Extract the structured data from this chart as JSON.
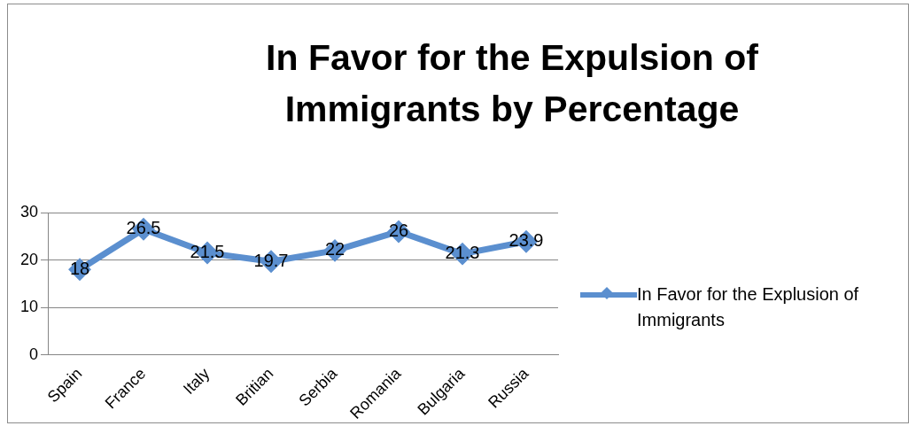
{
  "chart_data": {
    "type": "line",
    "title": "In Favor for the Expulsion of Immigrants by Percentage",
    "categories": [
      "Spain",
      "France",
      "Italy",
      "Britian",
      "Serbia",
      "Romania",
      "Bulgaria",
      "Russia"
    ],
    "series": [
      {
        "name": "In Favor for the Explusion of Immigrants",
        "color": "#5b8fcf",
        "values": [
          18,
          26.5,
          21.5,
          19.7,
          22,
          26,
          21.3,
          23.9
        ]
      }
    ],
    "ylim": [
      0,
      30
    ],
    "yticks": [
      0,
      10,
      20,
      30
    ],
    "grid": "y",
    "legend": "right",
    "marker": "diamond",
    "line_style": "solid",
    "data_labels": true
  }
}
